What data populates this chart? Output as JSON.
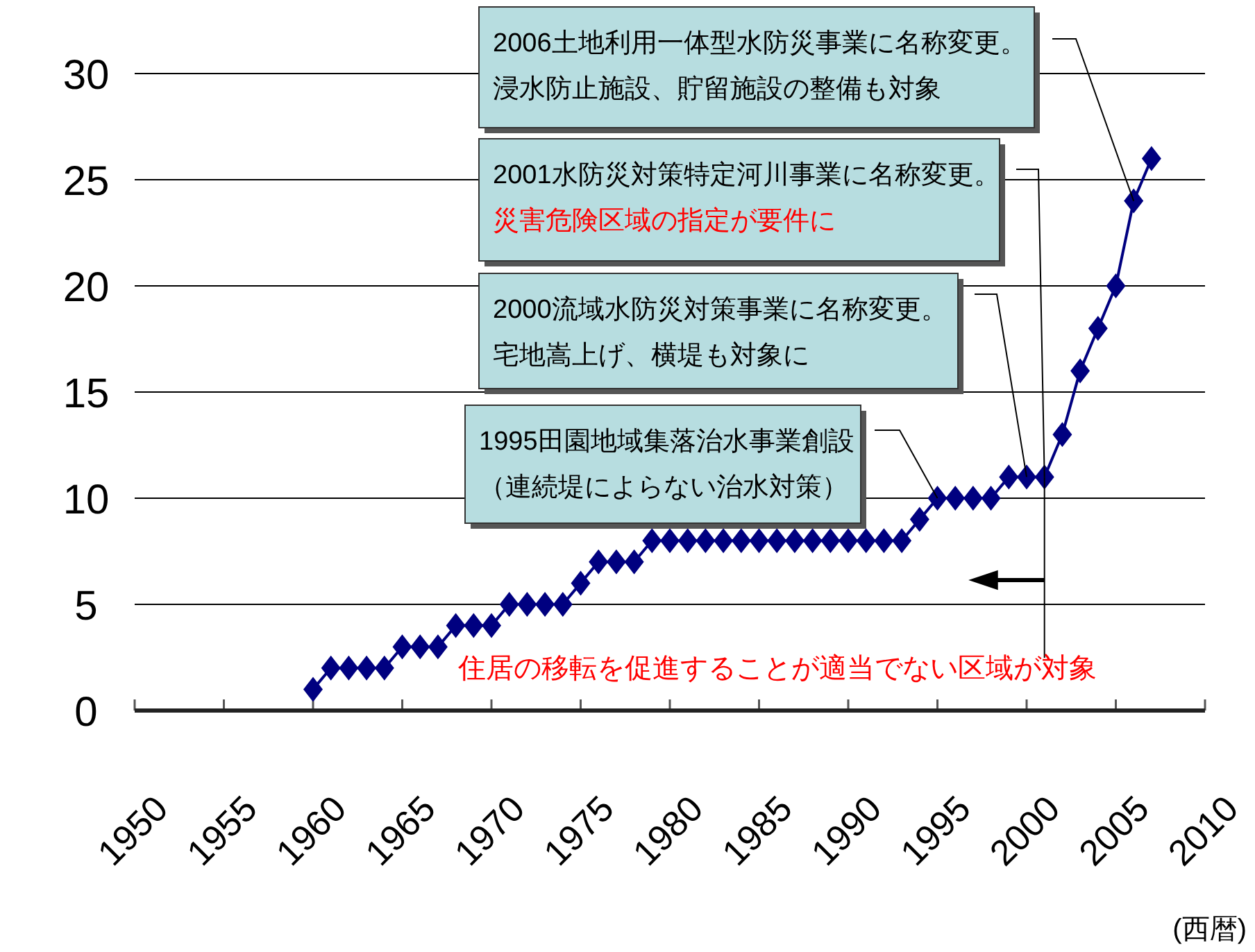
{
  "chart_data": {
    "type": "line",
    "x": [
      1960,
      1961,
      1962,
      1963,
      1964,
      1965,
      1966,
      1967,
      1968,
      1969,
      1970,
      1971,
      1972,
      1973,
      1974,
      1975,
      1976,
      1977,
      1978,
      1979,
      1980,
      1981,
      1982,
      1983,
      1984,
      1985,
      1986,
      1987,
      1988,
      1989,
      1990,
      1991,
      1992,
      1993,
      1994,
      1995,
      1996,
      1997,
      1998,
      1999,
      2000,
      2001,
      2002,
      2003,
      2004,
      2005,
      2006,
      2007
    ],
    "series": [
      {
        "color": "#000080",
        "values": [
          1,
          2,
          2,
          2,
          2,
          3,
          3,
          3,
          4,
          4,
          4,
          5,
          5,
          5,
          5,
          6,
          7,
          7,
          7,
          8,
          8,
          8,
          8,
          8,
          8,
          8,
          8,
          8,
          8,
          8,
          8,
          8,
          8,
          8,
          9,
          10,
          10,
          10,
          10,
          11,
          11,
          11,
          13,
          16,
          18,
          20,
          24,
          26
        ]
      }
    ],
    "xlim": [
      1950,
      2010
    ],
    "ylim": [
      0,
      30
    ],
    "xticks": [
      1950,
      1955,
      1960,
      1965,
      1970,
      1975,
      1980,
      1985,
      1990,
      1995,
      2000,
      2005,
      2010
    ],
    "yticks": [
      0,
      5,
      10,
      15,
      20,
      25,
      30
    ],
    "xlabel": "(西暦)",
    "grid": "y",
    "marker": "diamond",
    "line_style": "solid",
    "annotations": [
      {
        "text": "2006土地利用一体型水防災事業に名称変更。",
        "x": 2006,
        "y": 24
      },
      "浸水防止施設、貯留施設の整備も対象",
      {
        "text": "2001水防災対策特定河川事業に名称変更。",
        "x": 2001,
        "y": 11
      },
      "災害危険区域の指定が要件に",
      {
        "text": "2000流域水防災対策事業に名称変更。",
        "x": 2000,
        "y": 11
      },
      "宅地嵩上げ、横堤も対象に",
      {
        "text": "1995田園地域集落治水事業創設",
        "x": 1995,
        "y": 10
      },
      "（連続堤によらない治水対策）",
      {
        "text": "住居の移転を促進することが適当でない区域が対象",
        "x": 2001,
        "y": 11
      }
    ]
  }
}
